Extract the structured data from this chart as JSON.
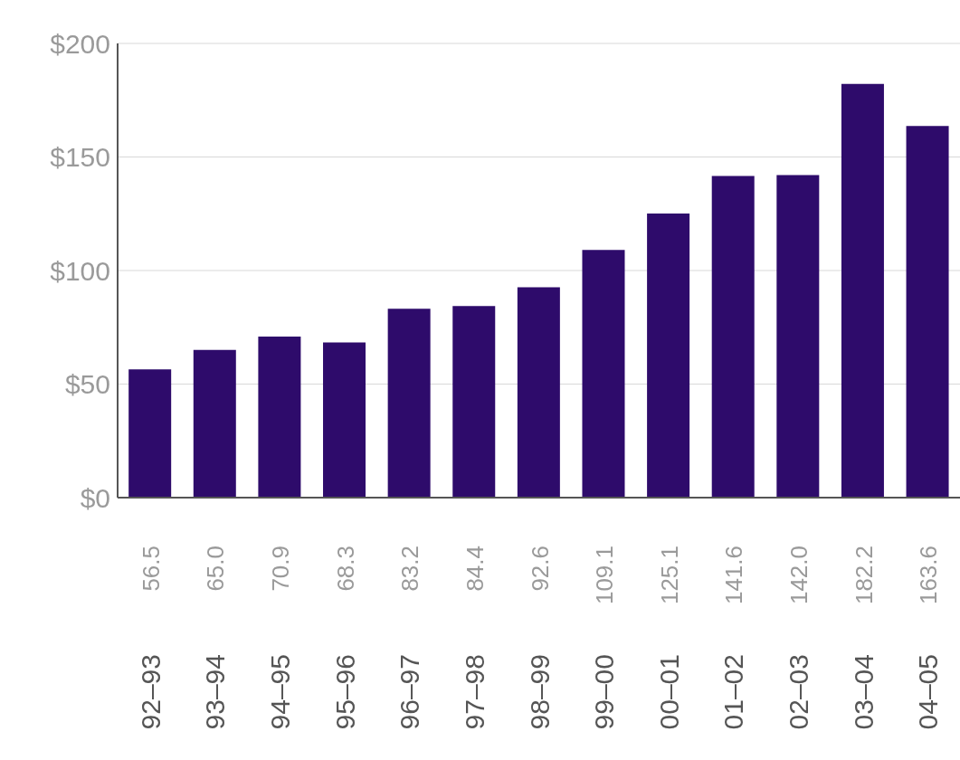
{
  "chart_data": {
    "type": "bar",
    "categories": [
      "92–93",
      "93–94",
      "94–95",
      "95–96",
      "96–97",
      "97–98",
      "98–99",
      "99–00",
      "00–01",
      "01–02",
      "02–03",
      "03–04",
      "04–05"
    ],
    "values": [
      56.5,
      65.0,
      70.9,
      68.3,
      83.2,
      84.4,
      92.6,
      109.1,
      125.1,
      141.6,
      142.0,
      182.2,
      163.6
    ],
    "value_labels": [
      "56.5",
      "65.0",
      "70.9",
      "68.3",
      "83.2",
      "84.4",
      "92.6",
      "109.1",
      "125.1",
      "141.6",
      "142.0",
      "182.2",
      "163.6"
    ],
    "color": "#2e0b6b",
    "ylim": [
      0,
      200
    ],
    "yticks": [
      {
        "value": 0,
        "label": "$0"
      },
      {
        "value": 50,
        "label": "$50"
      },
      {
        "value": 100,
        "label": "$100"
      },
      {
        "value": 150,
        "label": "$150"
      },
      {
        "value": 200,
        "label": "$200"
      }
    ],
    "grid": "y"
  }
}
